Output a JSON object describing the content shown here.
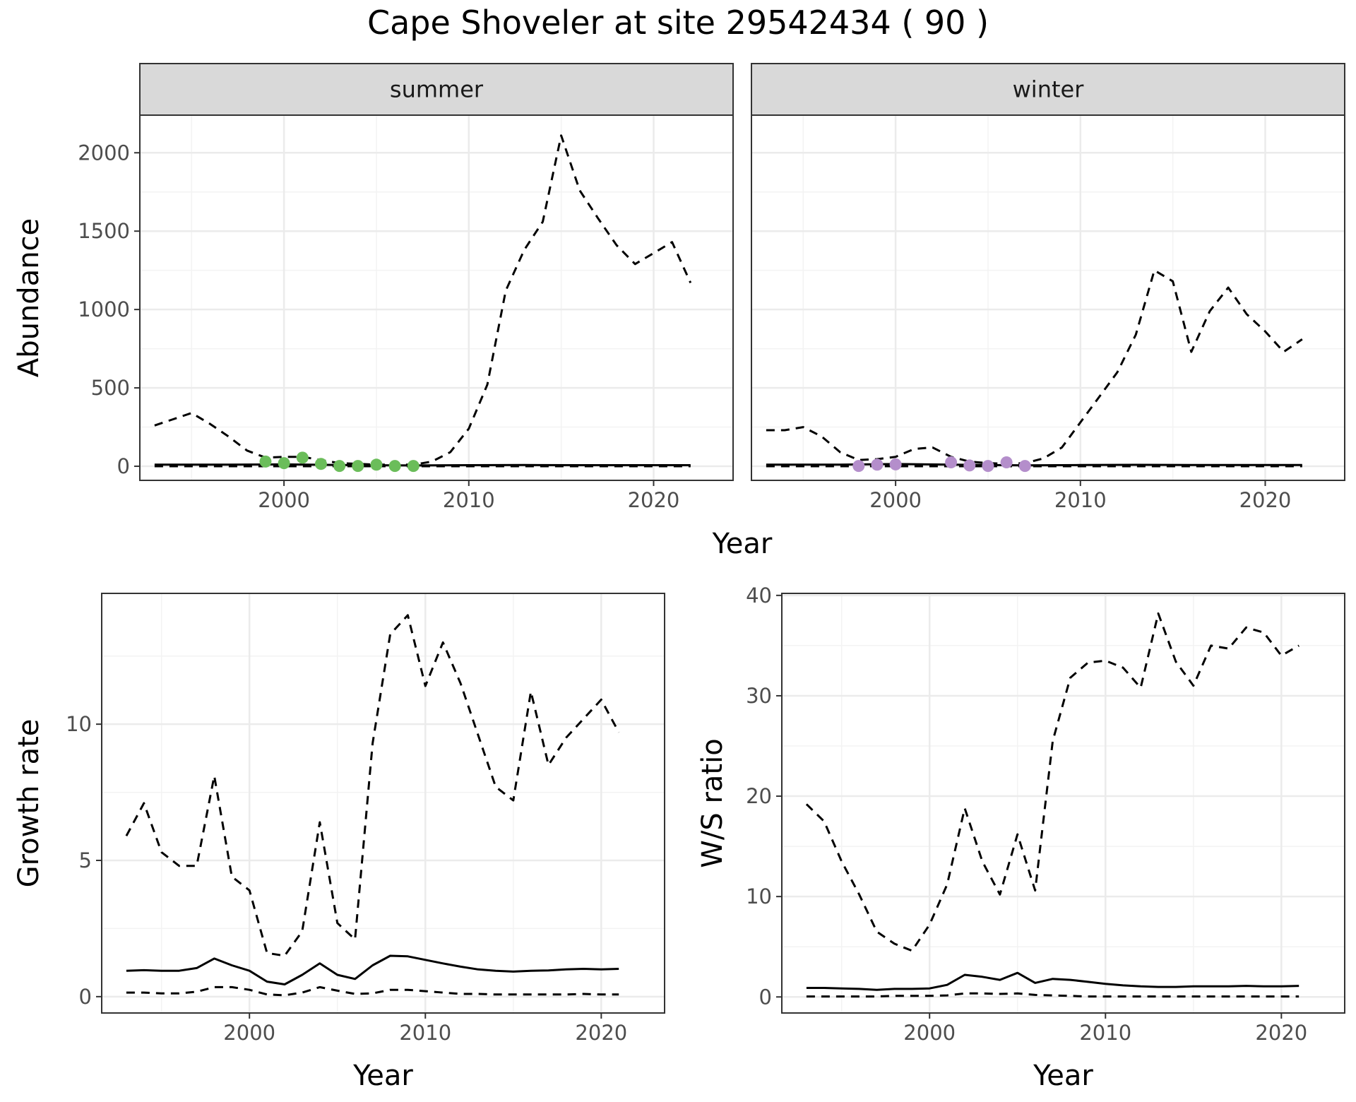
{
  "title": "Cape Shoveler at site 29542434 ( 90 )",
  "colors": {
    "summer_points": "#6bbd5a",
    "winter_points": "#b48ecb",
    "line": "#000000",
    "grid_major": "#ebebeb",
    "grid_minor": "#f3f3f3",
    "strip_fill": "#d9d9d9"
  },
  "chart_data": [
    {
      "type": "line",
      "panel": "abundance",
      "facets": [
        "summer",
        "winter"
      ],
      "xlabel": "Year",
      "ylabel": "Abundance",
      "xlim": [
        1992.2,
        2024.3
      ],
      "ylim": [
        -90,
        2240
      ],
      "xticks": [
        2000,
        2010,
        2020
      ],
      "yticks": [
        0,
        500,
        1000,
        1500,
        2000
      ],
      "grid": true,
      "series": [
        {
          "facet": "summer",
          "style": "dashed",
          "x": [
            1993,
            1994,
            1995,
            1996,
            1997,
            1998,
            1999,
            2000,
            2001,
            2002,
            2003,
            2004,
            2005,
            2006,
            2007,
            2008,
            2009,
            2010,
            2011,
            2012,
            2013,
            2014,
            2015,
            2016,
            2017,
            2018,
            2019,
            2020,
            2021,
            2022
          ],
          "values": [
            260,
            300,
            340,
            270,
            190,
            100,
            55,
            60,
            60,
            40,
            20,
            15,
            10,
            10,
            10,
            30,
            90,
            240,
            520,
            1120,
            1380,
            1560,
            2110,
            1760,
            1580,
            1410,
            1290,
            1360,
            1430,
            1170
          ]
        },
        {
          "facet": "summer",
          "style": "solid",
          "x": [
            1993,
            1997,
            2000,
            2003,
            2007,
            2010,
            2013,
            2016,
            2019,
            2022
          ],
          "values": [
            10,
            10,
            12,
            8,
            5,
            7,
            8,
            7,
            7,
            7
          ]
        },
        {
          "facet": "summer",
          "style": "dashed",
          "x": [
            1993,
            1998,
            2002,
            2006,
            2010,
            2014,
            2018,
            2022
          ],
          "values": [
            0,
            0,
            0,
            0,
            0,
            0,
            0,
            0
          ]
        },
        {
          "facet": "summer",
          "style": "points",
          "x": [
            1999,
            2000,
            2001,
            2002,
            2003,
            2004,
            2005,
            2006,
            2007
          ],
          "values": [
            30,
            20,
            55,
            15,
            2,
            2,
            10,
            2,
            2
          ]
        },
        {
          "facet": "winter",
          "style": "dashed",
          "x": [
            1993,
            1994,
            1995,
            1996,
            1997,
            1998,
            1999,
            2000,
            2001,
            2002,
            2003,
            2004,
            2005,
            2006,
            2007,
            2008,
            2009,
            2010,
            2011,
            2012,
            2013,
            2014,
            2015,
            2016,
            2017,
            2018,
            2019,
            2020,
            2021,
            2022
          ],
          "values": [
            230,
            230,
            250,
            190,
            90,
            40,
            45,
            60,
            110,
            120,
            60,
            30,
            20,
            15,
            20,
            50,
            120,
            280,
            440,
            600,
            840,
            1250,
            1180,
            730,
            990,
            1140,
            970,
            860,
            730,
            810
          ]
        },
        {
          "facet": "winter",
          "style": "solid",
          "x": [
            1993,
            1997,
            2000,
            2003,
            2007,
            2010,
            2013,
            2016,
            2019,
            2022
          ],
          "values": [
            10,
            10,
            14,
            10,
            6,
            8,
            9,
            8,
            8,
            8
          ]
        },
        {
          "facet": "winter",
          "style": "dashed",
          "x": [
            1993,
            1998,
            2002,
            2006,
            2010,
            2014,
            2018,
            2022
          ],
          "values": [
            0,
            0,
            0,
            0,
            0,
            0,
            0,
            0
          ]
        },
        {
          "facet": "winter",
          "style": "points",
          "x": [
            1998,
            1999,
            2000,
            2003,
            2004,
            2005,
            2006,
            2007
          ],
          "values": [
            2,
            10,
            12,
            25,
            5,
            2,
            25,
            2
          ]
        }
      ]
    },
    {
      "type": "line",
      "panel": "growth",
      "xlabel": "Year",
      "ylabel": "Growth rate",
      "xlim": [
        1991.6,
        2023.6
      ],
      "ylim": [
        -0.6,
        14.8
      ],
      "xticks": [
        2000,
        2010,
        2020
      ],
      "yticks": [
        0,
        5,
        10
      ],
      "grid": true,
      "series": [
        {
          "style": "dashed",
          "x": [
            1993,
            1994,
            1995,
            1996,
            1997,
            1998,
            1999,
            2000,
            2001,
            2002,
            2003,
            2004,
            2005,
            2006,
            2007,
            2008,
            2009,
            2010,
            2011,
            2012,
            2013,
            2014,
            2015,
            2016,
            2017,
            2018,
            2019,
            2020,
            2021
          ],
          "values": [
            5.9,
            7.1,
            5.3,
            4.8,
            4.8,
            8.1,
            4.4,
            3.9,
            1.6,
            1.5,
            2.4,
            6.4,
            2.7,
            2.1,
            9.3,
            13.3,
            14.0,
            11.4,
            13.0,
            11.5,
            9.6,
            7.7,
            7.2,
            11.2,
            8.5,
            9.5,
            10.2,
            10.9,
            9.7
          ]
        },
        {
          "style": "solid",
          "x": [
            1993,
            1994,
            1995,
            1996,
            1997,
            1998,
            1999,
            2000,
            2001,
            2002,
            2003,
            2004,
            2005,
            2006,
            2007,
            2008,
            2009,
            2010,
            2011,
            2012,
            2013,
            2014,
            2015,
            2016,
            2017,
            2018,
            2019,
            2020,
            2021
          ],
          "values": [
            0.95,
            0.97,
            0.95,
            0.95,
            1.05,
            1.4,
            1.15,
            0.95,
            0.55,
            0.45,
            0.8,
            1.22,
            0.8,
            0.65,
            1.15,
            1.5,
            1.48,
            1.35,
            1.22,
            1.1,
            1.0,
            0.95,
            0.92,
            0.95,
            0.96,
            1.0,
            1.02,
            1.0,
            1.02
          ]
        },
        {
          "style": "dashed",
          "x": [
            1993,
            1994,
            1995,
            1996,
            1997,
            1998,
            1999,
            2000,
            2001,
            2002,
            2003,
            2004,
            2005,
            2006,
            2007,
            2008,
            2009,
            2010,
            2011,
            2012,
            2013,
            2014,
            2015,
            2016,
            2017,
            2018,
            2019,
            2020,
            2021
          ],
          "values": [
            0.15,
            0.15,
            0.12,
            0.12,
            0.18,
            0.35,
            0.35,
            0.25,
            0.08,
            0.05,
            0.15,
            0.35,
            0.22,
            0.1,
            0.12,
            0.25,
            0.25,
            0.2,
            0.15,
            0.1,
            0.1,
            0.08,
            0.08,
            0.08,
            0.08,
            0.08,
            0.1,
            0.08,
            0.08
          ]
        }
      ]
    },
    {
      "type": "line",
      "panel": "ratio",
      "xlabel": "Year",
      "ylabel": "W/S ratio",
      "xlim": [
        1991.6,
        2023.6
      ],
      "ylim": [
        -1.6,
        40.2
      ],
      "xticks": [
        2000,
        2010,
        2020
      ],
      "yticks": [
        0,
        10,
        20,
        30,
        40
      ],
      "grid": true,
      "series": [
        {
          "style": "dashed",
          "x": [
            1993,
            1994,
            1995,
            1996,
            1997,
            1998,
            1999,
            2000,
            2001,
            2002,
            2003,
            2004,
            2005,
            2006,
            2007,
            2008,
            2009,
            2010,
            2011,
            2012,
            2013,
            2014,
            2015,
            2016,
            2017,
            2018,
            2019,
            2020,
            2021
          ],
          "values": [
            19.2,
            17.5,
            13.5,
            10.2,
            6.5,
            5.3,
            4.6,
            7.2,
            11.2,
            18.8,
            13.5,
            10.2,
            16.2,
            10.6,
            25.5,
            31.8,
            33.3,
            33.5,
            32.8,
            30.8,
            38.2,
            33.4,
            31.0,
            35.0,
            34.7,
            36.8,
            36.3,
            34.0,
            35.0
          ]
        },
        {
          "style": "solid",
          "x": [
            1993,
            1994,
            1995,
            1996,
            1997,
            1998,
            1999,
            2000,
            2001,
            2002,
            2003,
            2004,
            2005,
            2006,
            2007,
            2008,
            2009,
            2010,
            2011,
            2012,
            2013,
            2014,
            2015,
            2016,
            2017,
            2018,
            2019,
            2020,
            2021
          ],
          "values": [
            0.9,
            0.9,
            0.85,
            0.8,
            0.7,
            0.8,
            0.8,
            0.85,
            1.2,
            2.2,
            2.0,
            1.7,
            2.4,
            1.4,
            1.8,
            1.7,
            1.5,
            1.3,
            1.15,
            1.05,
            1.0,
            1.0,
            1.05,
            1.05,
            1.05,
            1.1,
            1.05,
            1.05,
            1.1
          ]
        },
        {
          "style": "dashed",
          "x": [
            1993,
            1994,
            1995,
            1996,
            1997,
            1998,
            1999,
            2000,
            2001,
            2002,
            2003,
            2004,
            2005,
            2006,
            2007,
            2008,
            2009,
            2010,
            2011,
            2012,
            2013,
            2014,
            2015,
            2016,
            2017,
            2018,
            2019,
            2020,
            2021
          ],
          "values": [
            0.05,
            0.05,
            0.05,
            0.05,
            0.05,
            0.1,
            0.1,
            0.1,
            0.15,
            0.35,
            0.35,
            0.3,
            0.35,
            0.2,
            0.15,
            0.1,
            0.05,
            0.05,
            0.05,
            0.05,
            0.05,
            0.05,
            0.05,
            0.05,
            0.05,
            0.05,
            0.05,
            0.05,
            0.05
          ]
        }
      ]
    }
  ]
}
